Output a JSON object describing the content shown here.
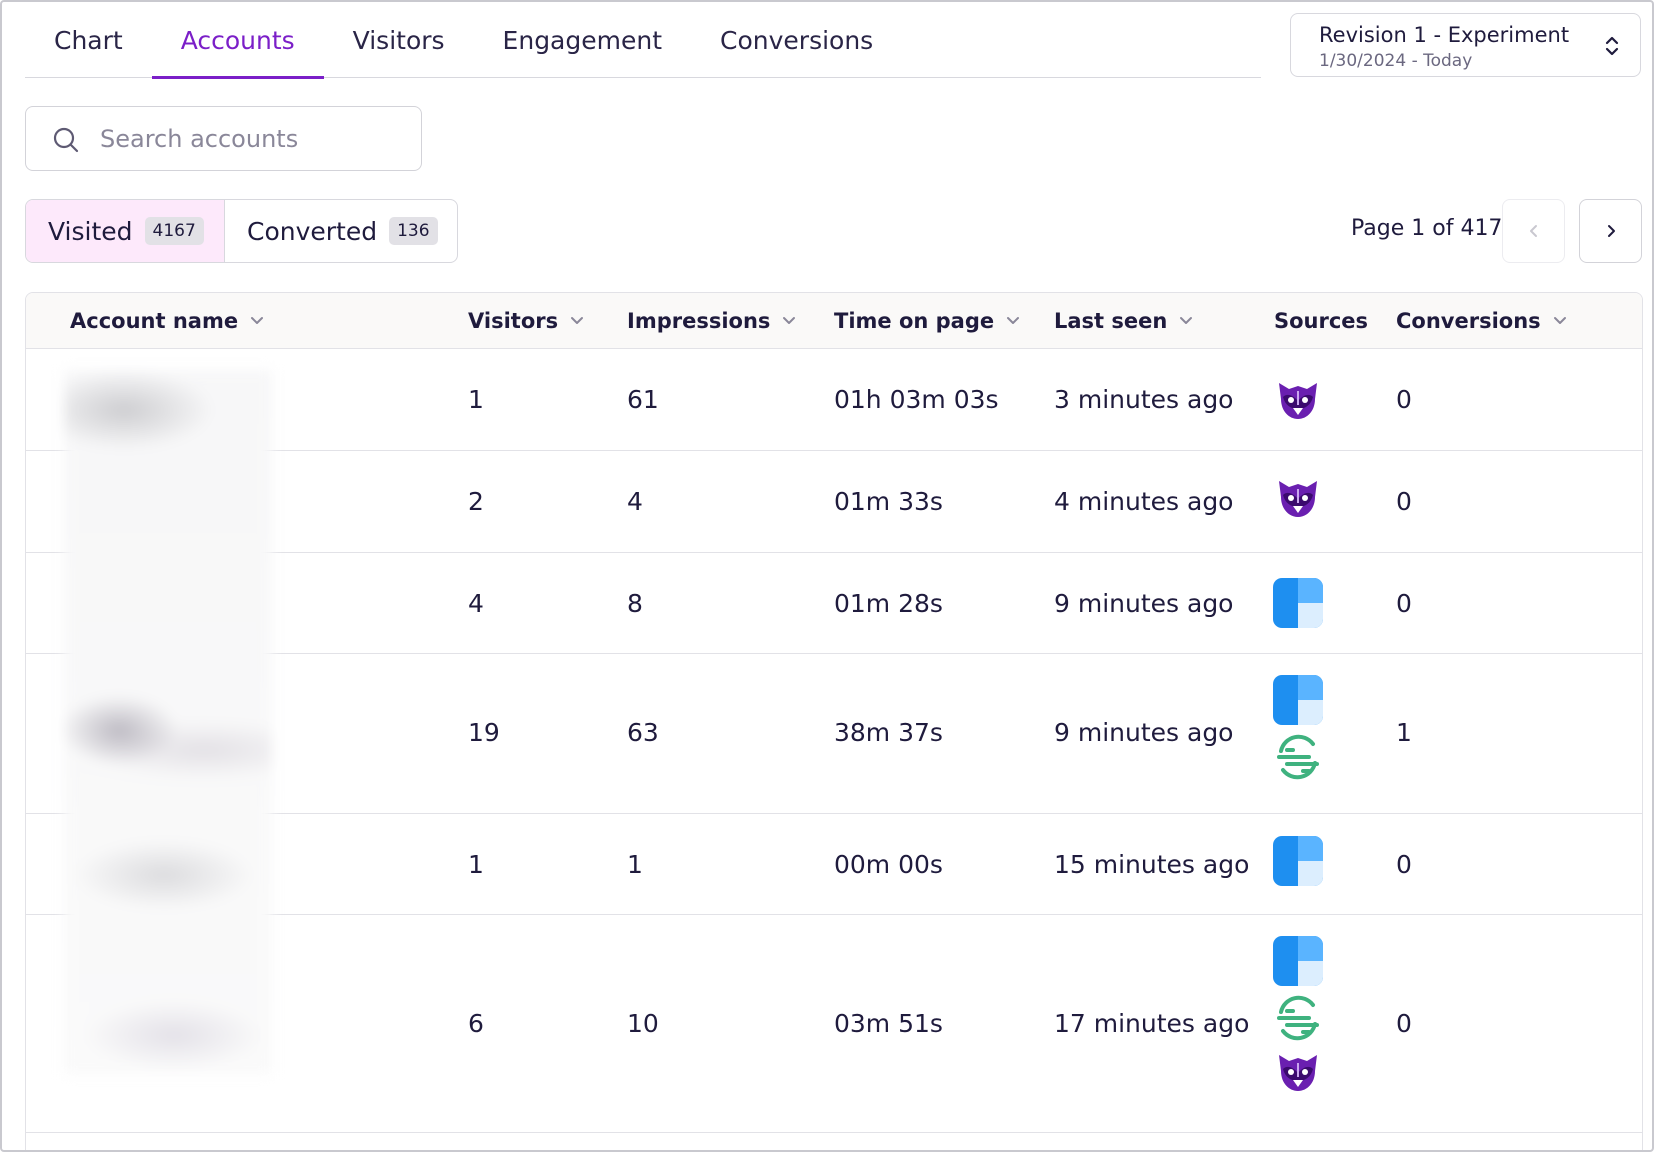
{
  "tabs": [
    {
      "label": "Chart",
      "active": false
    },
    {
      "label": "Accounts",
      "active": true
    },
    {
      "label": "Visitors",
      "active": false
    },
    {
      "label": "Engagement",
      "active": false
    },
    {
      "label": "Conversions",
      "active": false
    }
  ],
  "revision": {
    "title": "Revision 1 - Experiment",
    "range": "1/30/2024 - Today"
  },
  "search": {
    "placeholder": "Search accounts",
    "value": ""
  },
  "filter": {
    "visited_label": "Visited",
    "visited_count": "4167",
    "converted_label": "Converted",
    "converted_count": "136"
  },
  "pagination": {
    "text": "Page 1 of 417"
  },
  "table": {
    "columns": [
      "Account name",
      "Visitors",
      "Impressions",
      "Time on page",
      "Last seen",
      "Sources",
      "Conversions"
    ],
    "rows": [
      {
        "visitors": "1",
        "impressions": "61",
        "time": "01h 03m 03s",
        "last_seen": "3 minutes ago",
        "sources": [
          "raccoon-icon"
        ],
        "conversions": "0"
      },
      {
        "visitors": "2",
        "impressions": "4",
        "time": "01m 33s",
        "last_seen": "4 minutes ago",
        "sources": [
          "raccoon-icon"
        ],
        "conversions": "0"
      },
      {
        "visitors": "4",
        "impressions": "8",
        "time": "01m 28s",
        "last_seen": "9 minutes ago",
        "sources": [
          "blue-quadrant-icon"
        ],
        "conversions": "0"
      },
      {
        "visitors": "19",
        "impressions": "63",
        "time": "38m 37s",
        "last_seen": "9 minutes ago",
        "sources": [
          "blue-quadrant-icon",
          "segment-icon"
        ],
        "conversions": "1"
      },
      {
        "visitors": "1",
        "impressions": "1",
        "time": "00m 00s",
        "last_seen": "15 minutes ago",
        "sources": [
          "blue-quadrant-icon"
        ],
        "conversions": "0"
      },
      {
        "visitors": "6",
        "impressions": "10",
        "time": "03m 51s",
        "last_seen": "17 minutes ago",
        "sources": [
          "blue-quadrant-icon",
          "segment-icon",
          "raccoon-icon"
        ],
        "conversions": "0"
      }
    ]
  },
  "colors": {
    "accent": "#7b1fc8",
    "visited_bg": "#fde9fb",
    "text": "#1f1b3d"
  }
}
